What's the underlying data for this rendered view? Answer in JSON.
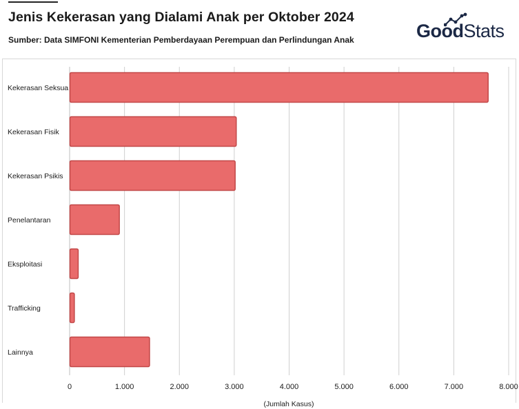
{
  "header": {
    "title": "Jenis Kekerasan yang Dialami Anak per Oktober 2024",
    "subtitle": "Sumber: Data SIMFONI Kementerian Pemberdayaan Perempuan dan Perlindungan Anak"
  },
  "logo": {
    "text_bold": "Good",
    "text_light": "Stats",
    "icon": "rising-line-chart-icon"
  },
  "colors": {
    "bar_fill": "#e96b6b",
    "bar_stroke": "#c24848",
    "grid": "#cfcfcf",
    "text": "#1a1a1a"
  },
  "chart_data": {
    "type": "bar",
    "orientation": "horizontal",
    "categories": [
      "Kekerasan Seksual",
      "Kekerasan Fisik",
      "Kekerasan Psikis",
      "Penelantaran",
      "Eksploitasi",
      "Trafficking",
      "Lainnya"
    ],
    "category_display_labels": [
      "Kekerasan Seksua",
      "Kekerasan Fisik",
      "Kekerasan Psikis",
      "Penelantaran",
      "Eksploitasi",
      "Trafficking",
      "Lainnya"
    ],
    "values": [
      7620,
      3030,
      3010,
      900,
      150,
      80,
      1450
    ],
    "title": "Jenis Kekerasan yang Dialami Anak per Oktober 2024",
    "xlabel": "(Jumlah Kasus)",
    "ylabel": "",
    "xlim": [
      0,
      8000
    ],
    "xticks": [
      0,
      1000,
      2000,
      3000,
      4000,
      5000,
      6000,
      7000,
      8000
    ],
    "xtick_labels": [
      "0",
      "1.000",
      "2.000",
      "3.000",
      "4.000",
      "5.000",
      "6.000",
      "7.000",
      "8.000"
    ],
    "grid": "vertical",
    "legend": "none"
  }
}
